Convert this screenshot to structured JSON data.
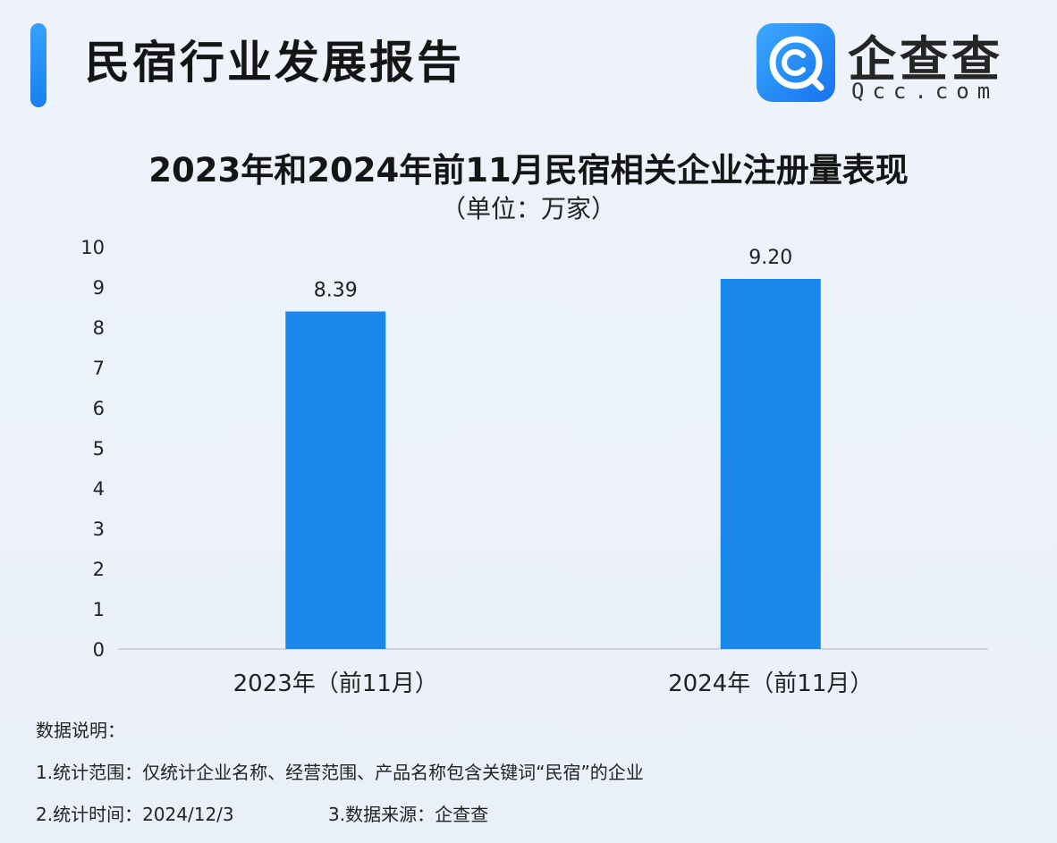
{
  "header": {
    "title": "民宿行业发展报告",
    "brand_name": "企查查",
    "brand_domain": "Qcc.com"
  },
  "chart_data": {
    "type": "bar",
    "title": "2023年和2024年前11月民宿相关企业注册量表现",
    "subtitle": "（单位：万家）",
    "categories": [
      "2023年（前11月）",
      "2024年（前11月）"
    ],
    "values": [
      8.39,
      9.2
    ],
    "value_labels": [
      "8.39",
      "9.20"
    ],
    "yticks": [
      "0",
      "1",
      "2",
      "3",
      "4",
      "5",
      "6",
      "7",
      "8",
      "9",
      "10"
    ],
    "ylim": [
      0,
      10
    ],
    "grid": false,
    "bar_color": "#1a88ea"
  },
  "notes": {
    "heading": "数据说明：",
    "scope": "1.统计范围：仅统计企业名称、经营范围、产品名称包含关键词“民宿”的企业",
    "time": "2.统计时间：2024/12/3",
    "source": "3.数据来源：企查查"
  },
  "colors": {
    "accent": "#1a88ea",
    "background": "#eef3fb"
  }
}
